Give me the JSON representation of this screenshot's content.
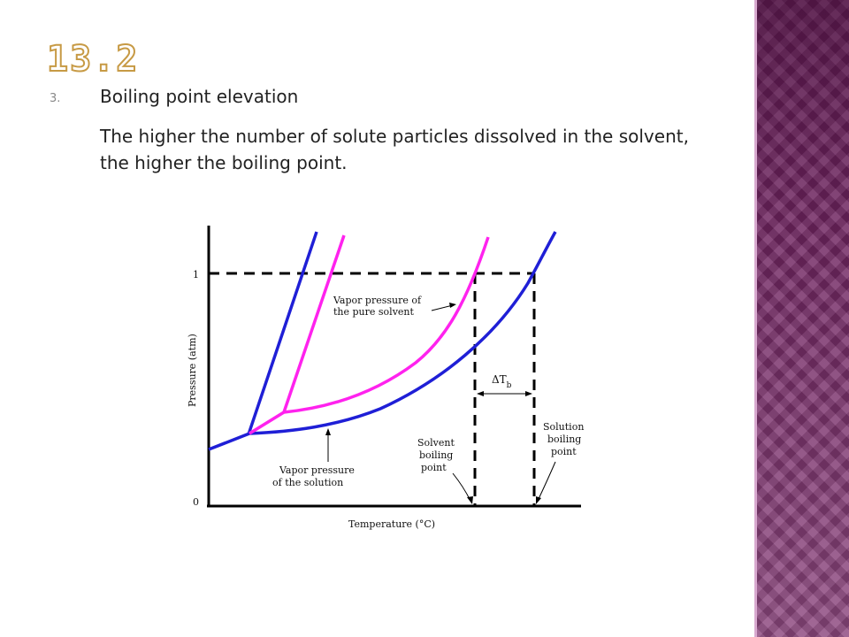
{
  "slide": {
    "title": "13.2",
    "list_number": "3.",
    "heading": "Boiling point elevation",
    "body": "The higher the number of solute particles dissolved in the solvent, the higher the boiling point."
  },
  "diagram": {
    "y_axis_label": "Pressure (atm)",
    "x_axis_label": "Temperature (°C)",
    "tick_1": "1",
    "tick_0": "0",
    "label_pure_line1": "Vapor pressure of",
    "label_pure_line2": "the pure solvent",
    "label_solution_line1": "Vapor pressure",
    "label_solution_line2": "of the solution",
    "label_solvent_bp_line1": "Solvent",
    "label_solvent_bp_line2": "boiling",
    "label_solvent_bp_line3": "point",
    "label_solution_bp_line1": "Solution",
    "label_solution_bp_line2": "boiling",
    "label_solution_bp_line3": "point",
    "delta_symbol": "ΔT",
    "delta_subscript": "b",
    "colors": {
      "solution": "#1f1fd6",
      "solvent": "#ff22ee",
      "axes": "#000000"
    }
  }
}
